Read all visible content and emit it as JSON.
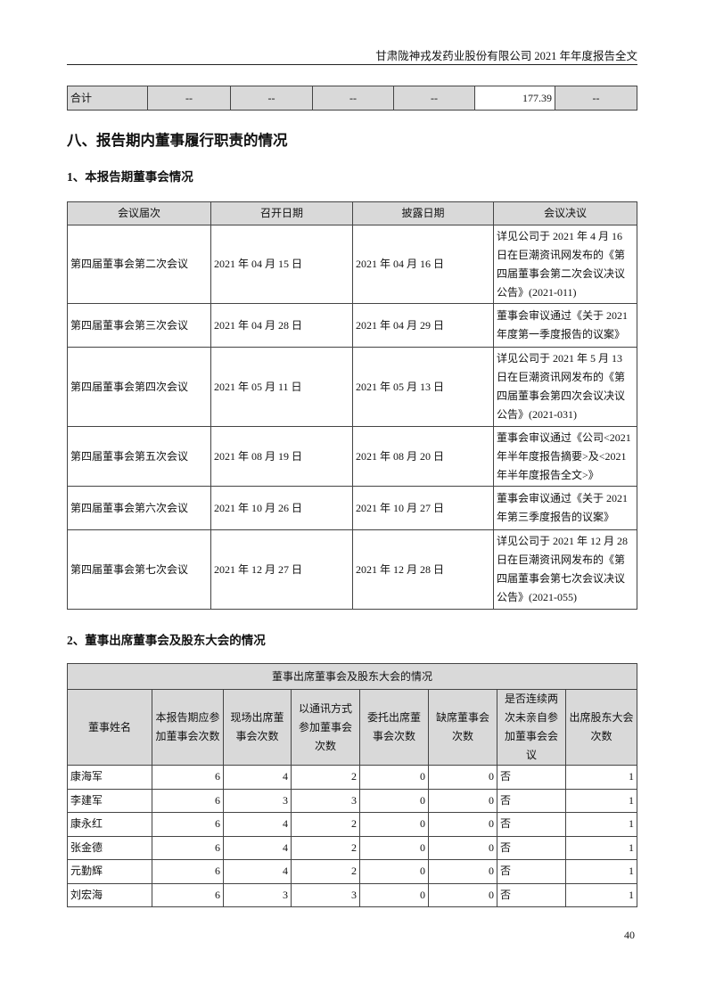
{
  "header": "甘肃陇神戎发药业股份有限公司 2021 年年度报告全文",
  "total_row": [
    "合计",
    "--",
    "--",
    "--",
    "--",
    "177.39",
    "--"
  ],
  "section_title": "八、报告期内董事履行职责的情况",
  "sub1": "1、本报告期董事会情况",
  "meetings": {
    "headers": [
      "会议届次",
      "召开日期",
      "披露日期",
      "会议决议"
    ],
    "rows": [
      [
        "第四届董事会第二次会议",
        "2021 年 04 月 15 日",
        "2021 年 04 月 16 日",
        "详见公司于 2021 年 4 月 16 日在巨潮资讯网发布的《第四届董事会第二次会议决议公告》(2021-011)"
      ],
      [
        "第四届董事会第三次会议",
        "2021 年 04 月 28 日",
        "2021 年 04 月 29 日",
        "董事会审议通过《关于 2021 年度第一季度报告的议案》"
      ],
      [
        "第四届董事会第四次会议",
        "2021 年 05 月 11 日",
        "2021 年 05 月 13 日",
        "详见公司于 2021 年 5 月 13 日在巨潮资讯网发布的《第四届董事会第四次会议决议公告》(2021-031)"
      ],
      [
        "第四届董事会第五次会议",
        "2021 年 08 月 19 日",
        "2021 年 08 月 20 日",
        "董事会审议通过《公司<2021 年半年度报告摘要>及<2021 年半年度报告全文>》"
      ],
      [
        "第四届董事会第六次会议",
        "2021 年 10 月 26 日",
        "2021 年 10 月 27 日",
        "董事会审议通过《关于 2021 年第三季度报告的议案》"
      ],
      [
        "第四届董事会第七次会议",
        "2021 年 12 月 27 日",
        "2021 年 12 月 28 日",
        "详见公司于 2021 年 12 月 28 日在巨潮资讯网发布的《第四届董事会第七次会议决议公告》(2021-055)"
      ]
    ]
  },
  "sub2": "2、董事出席董事会及股东大会的情况",
  "attendance": {
    "title": "董事出席董事会及股东大会的情况",
    "headers": [
      "董事姓名",
      "本报告期应参加董事会次数",
      "现场出席董事会次数",
      "以通讯方式参加董事会次数",
      "委托出席董事会次数",
      "缺席董事会次数",
      "是否连续两次未亲自参加董事会会议",
      "出席股东大会次数"
    ],
    "rows": [
      [
        "康海军",
        "6",
        "4",
        "2",
        "0",
        "0",
        "否",
        "1"
      ],
      [
        "李建军",
        "6",
        "3",
        "3",
        "0",
        "0",
        "否",
        "1"
      ],
      [
        "康永红",
        "6",
        "4",
        "2",
        "0",
        "0",
        "否",
        "1"
      ],
      [
        "张金德",
        "6",
        "4",
        "2",
        "0",
        "0",
        "否",
        "1"
      ],
      [
        "元勤辉",
        "6",
        "4",
        "2",
        "0",
        "0",
        "否",
        "1"
      ],
      [
        "刘宏海",
        "6",
        "3",
        "3",
        "0",
        "0",
        "否",
        "1"
      ]
    ]
  },
  "page_number": "40"
}
